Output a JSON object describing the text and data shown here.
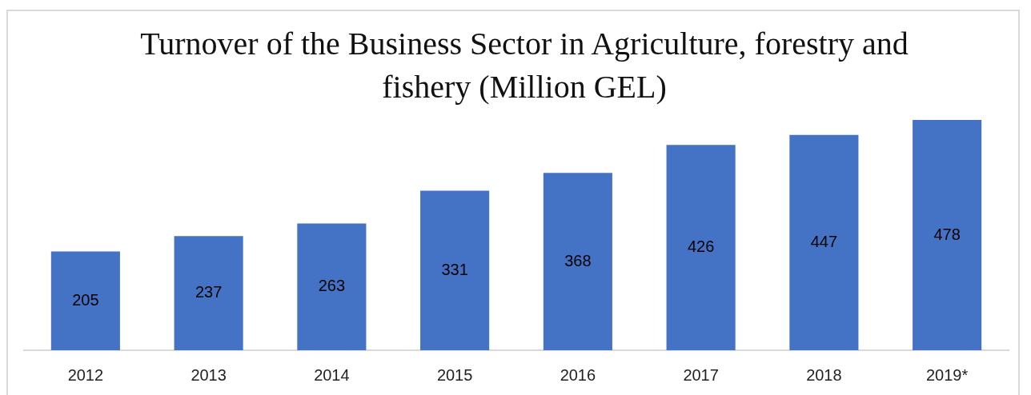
{
  "chart_data": {
    "type": "bar",
    "title": "Turnover of the Business Sector in Agriculture, forestry and fishery (Million GEL)",
    "categories": [
      "2012",
      "2013",
      "2014",
      "2015",
      "2016",
      "2017",
      "2018",
      "2019*"
    ],
    "values": [
      205,
      237,
      263,
      331,
      368,
      426,
      447,
      478
    ],
    "color": "#4472c4",
    "data_labels": true
  }
}
